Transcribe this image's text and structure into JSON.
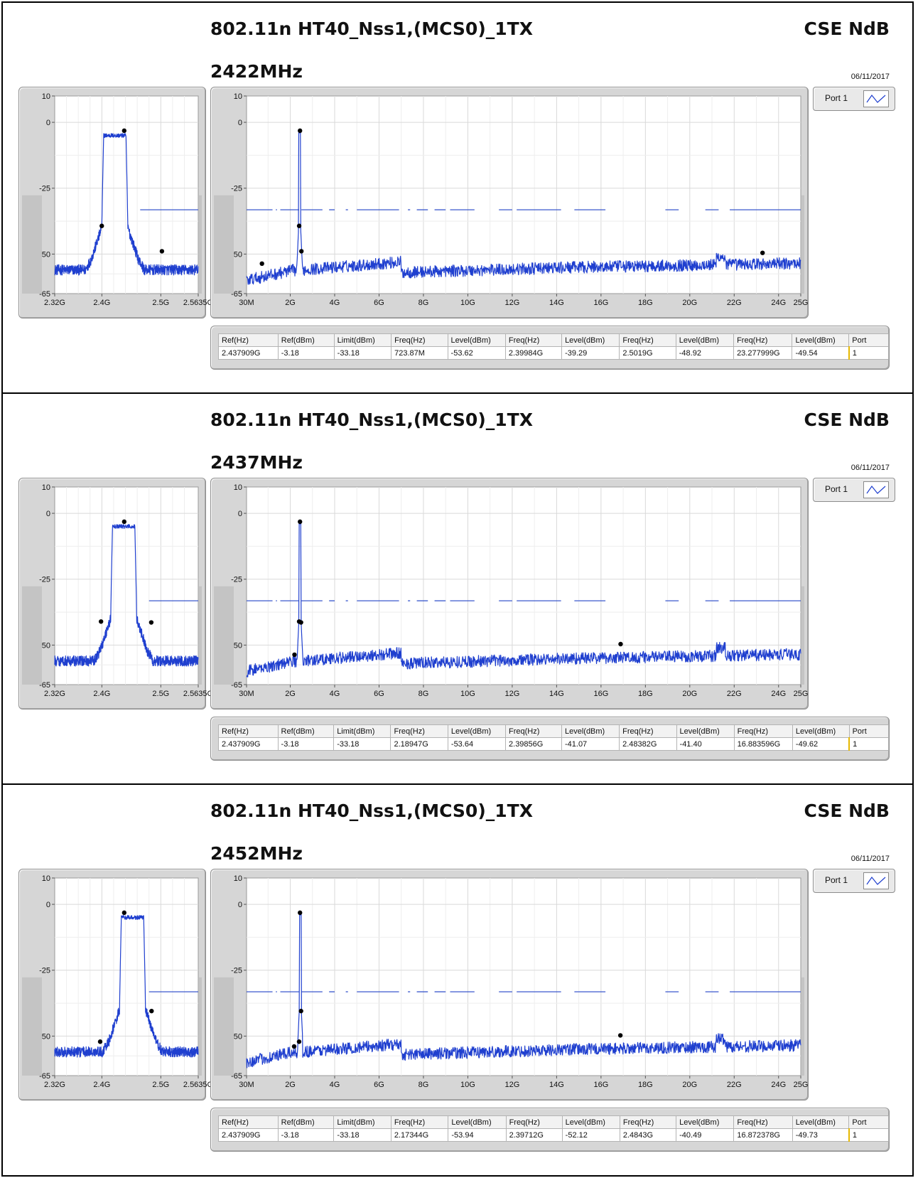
{
  "sections": [
    {
      "title": "802.11n HT40_Nss1,(MCS0)_1TX",
      "freq_label": "2422MHz",
      "brand": "CSE NdB",
      "date": "06/11/2017",
      "port_label": "Port 1",
      "markers_table": {
        "headers": [
          "Ref(Hz)",
          "Ref(dBm)",
          "Limit(dBm)",
          "Freq(Hz)",
          "Level(dBm)",
          "Freq(Hz)",
          "Level(dBm)",
          "Freq(Hz)",
          "Level(dBm)",
          "Freq(Hz)",
          "Level(dBm)",
          "Port"
        ],
        "row": [
          "2.437909G",
          "-3.18",
          "-33.18",
          "723.87M",
          "-53.62",
          "2.39984G",
          "-39.29",
          "2.5019G",
          "-48.92",
          "23.277999G",
          "-49.54",
          "1"
        ]
      }
    },
    {
      "title": "802.11n HT40_Nss1,(MCS0)_1TX",
      "freq_label": "2437MHz",
      "brand": "CSE NdB",
      "date": "06/11/2017",
      "port_label": "Port 1",
      "markers_table": {
        "headers": [
          "Ref(Hz)",
          "Ref(dBm)",
          "Limit(dBm)",
          "Freq(Hz)",
          "Level(dBm)",
          "Freq(Hz)",
          "Level(dBm)",
          "Freq(Hz)",
          "Level(dBm)",
          "Freq(Hz)",
          "Level(dBm)",
          "Port"
        ],
        "row": [
          "2.437909G",
          "-3.18",
          "-33.18",
          "2.18947G",
          "-53.64",
          "2.39856G",
          "-41.07",
          "2.48382G",
          "-41.40",
          "16.883596G",
          "-49.62",
          "1"
        ]
      }
    },
    {
      "title": "802.11n HT40_Nss1,(MCS0)_1TX",
      "freq_label": "2452MHz",
      "brand": "CSE NdB",
      "date": "06/11/2017",
      "port_label": "Port 1",
      "markers_table": {
        "headers": [
          "Ref(Hz)",
          "Ref(dBm)",
          "Limit(dBm)",
          "Freq(Hz)",
          "Level(dBm)",
          "Freq(Hz)",
          "Level(dBm)",
          "Freq(Hz)",
          "Level(dBm)",
          "Freq(Hz)",
          "Level(dBm)",
          "Port"
        ],
        "row": [
          "2.437909G",
          "-3.18",
          "-33.18",
          "2.17344G",
          "-53.94",
          "2.39712G",
          "-52.12",
          "2.4843G",
          "-40.49",
          "16.872378G",
          "-49.73",
          "1"
        ]
      }
    }
  ],
  "chart_data": [
    {
      "type": "line",
      "section": 1,
      "chart": "zoom",
      "xlim_hz": [
        2320000000,
        2563500000
      ],
      "ylim": [
        -65,
        10
      ],
      "x_ticks": [
        2320000000,
        2400000000,
        2500000000,
        2563500000
      ],
      "x_tick_labels": [
        "2.32G",
        "2.4G",
        "2.5G",
        "2.5635G"
      ],
      "y_ticks": [
        10,
        0,
        -25,
        -50,
        -65
      ],
      "y_tick_labels": [
        "10",
        "0",
        "-25",
        "-50",
        "-65"
      ],
      "carrier_hz": 2422000000,
      "limit_dbm": -33.18,
      "limit_segments_hz": [
        [
          2465000000,
          2563500000
        ]
      ],
      "markers": [
        {
          "x_hz": 2437909000,
          "y": -3.18
        },
        {
          "x_hz": 2399840000,
          "y": -39.29
        },
        {
          "x_hz": 2501900000,
          "y": -48.92
        }
      ],
      "grid": true,
      "series_color": "#1f3fcf"
    },
    {
      "type": "line",
      "section": 1,
      "chart": "wide",
      "xlim_hz": [
        30000000,
        25000000000
      ],
      "ylim": [
        -65,
        10
      ],
      "x_ticks": [
        30000000,
        2000000000,
        4000000000,
        6000000000,
        8000000000,
        10000000000,
        12000000000,
        14000000000,
        16000000000,
        18000000000,
        20000000000,
        22000000000,
        24000000000,
        25000000000
      ],
      "x_tick_labels": [
        "30M",
        "2G",
        "4G",
        "6G",
        "8G",
        "10G",
        "12G",
        "14G",
        "16G",
        "18G",
        "20G",
        "22G",
        "24G",
        "25G"
      ],
      "y_ticks": [
        10,
        0,
        -25,
        -50,
        -65
      ],
      "y_tick_labels": [
        "10",
        "0",
        "-25",
        "-50",
        "-65"
      ],
      "carrier_hz": 2422000000,
      "limit_dbm": -33.18,
      "limit_segments_hz": [
        [
          30000000,
          1200000000
        ],
        [
          1350000000,
          1400000000
        ],
        [
          1550000000,
          2400000000
        ],
        [
          2500000000,
          3450000000
        ],
        [
          3750000000,
          4000000000
        ],
        [
          4500000000,
          4600000000
        ],
        [
          5000000000,
          6900000000
        ],
        [
          7300000000,
          7400000000
        ],
        [
          7700000000,
          8200000000
        ],
        [
          8500000000,
          9000000000
        ],
        [
          9200000000,
          10300000000
        ],
        [
          11400000000,
          12000000000
        ],
        [
          12200000000,
          14200000000
        ],
        [
          14800000000,
          16200000000
        ],
        [
          18900000000,
          19500000000
        ],
        [
          20700000000,
          21300000000
        ],
        [
          21800000000,
          25000000000
        ]
      ],
      "markers": [
        {
          "x_hz": 2437909000,
          "y": -3.18
        },
        {
          "x_hz": 723870000,
          "y": -53.62
        },
        {
          "x_hz": 2399840000,
          "y": -39.29
        },
        {
          "x_hz": 2501900000,
          "y": -48.92
        },
        {
          "x_hz": 23277999000,
          "y": -49.54
        }
      ],
      "grid": true,
      "series_color": "#1f3fcf"
    },
    {
      "type": "line",
      "section": 2,
      "chart": "zoom",
      "xlim_hz": [
        2320000000,
        2563500000
      ],
      "ylim": [
        -65,
        10
      ],
      "x_ticks": [
        2320000000,
        2400000000,
        2500000000,
        2563500000
      ],
      "x_tick_labels": [
        "2.32G",
        "2.4G",
        "2.5G",
        "2.5635G"
      ],
      "y_ticks": [
        10,
        0,
        -25,
        -50,
        -65
      ],
      "y_tick_labels": [
        "10",
        "0",
        "-25",
        "-50",
        "-65"
      ],
      "carrier_hz": 2437000000,
      "limit_dbm": -33.18,
      "limit_segments_hz": [
        [
          2480000000,
          2563500000
        ]
      ],
      "markers": [
        {
          "x_hz": 2437909000,
          "y": -3.18
        },
        {
          "x_hz": 2398560000,
          "y": -41.07
        },
        {
          "x_hz": 2483820000,
          "y": -41.4
        }
      ],
      "grid": true,
      "series_color": "#1f3fcf"
    },
    {
      "type": "line",
      "section": 2,
      "chart": "wide",
      "xlim_hz": [
        30000000,
        25000000000
      ],
      "ylim": [
        -65,
        10
      ],
      "x_ticks": [
        30000000,
        2000000000,
        4000000000,
        6000000000,
        8000000000,
        10000000000,
        12000000000,
        14000000000,
        16000000000,
        18000000000,
        20000000000,
        22000000000,
        24000000000,
        25000000000
      ],
      "x_tick_labels": [
        "30M",
        "2G",
        "4G",
        "6G",
        "8G",
        "10G",
        "12G",
        "14G",
        "16G",
        "18G",
        "20G",
        "22G",
        "24G",
        "25G"
      ],
      "y_ticks": [
        10,
        0,
        -25,
        -50,
        -65
      ],
      "y_tick_labels": [
        "10",
        "0",
        "-25",
        "-50",
        "-65"
      ],
      "carrier_hz": 2437000000,
      "limit_dbm": -33.18,
      "limit_segments_hz": [
        [
          30000000,
          1200000000
        ],
        [
          1350000000,
          1400000000
        ],
        [
          1550000000,
          2400000000
        ],
        [
          2500000000,
          3450000000
        ],
        [
          3750000000,
          4000000000
        ],
        [
          4500000000,
          4600000000
        ],
        [
          5000000000,
          6900000000
        ],
        [
          7300000000,
          7400000000
        ],
        [
          7700000000,
          8200000000
        ],
        [
          8500000000,
          9000000000
        ],
        [
          9200000000,
          10300000000
        ],
        [
          11400000000,
          12000000000
        ],
        [
          12200000000,
          14200000000
        ],
        [
          14800000000,
          16200000000
        ],
        [
          18900000000,
          19500000000
        ],
        [
          20700000000,
          21300000000
        ],
        [
          21800000000,
          25000000000
        ]
      ],
      "markers": [
        {
          "x_hz": 2437909000,
          "y": -3.18
        },
        {
          "x_hz": 2189470000,
          "y": -53.64
        },
        {
          "x_hz": 2398560000,
          "y": -41.07
        },
        {
          "x_hz": 2483820000,
          "y": -41.4
        },
        {
          "x_hz": 16883596000,
          "y": -49.62
        }
      ],
      "grid": true,
      "series_color": "#1f3fcf"
    },
    {
      "type": "line",
      "section": 3,
      "chart": "zoom",
      "xlim_hz": [
        2320000000,
        2563500000
      ],
      "ylim": [
        -65,
        10
      ],
      "x_ticks": [
        2320000000,
        2400000000,
        2500000000,
        2563500000
      ],
      "x_tick_labels": [
        "2.32G",
        "2.4G",
        "2.5G",
        "2.5635G"
      ],
      "y_ticks": [
        10,
        0,
        -25,
        -50,
        -65
      ],
      "y_tick_labels": [
        "10",
        "0",
        "-25",
        "-50",
        "-65"
      ],
      "carrier_hz": 2452000000,
      "limit_dbm": -33.18,
      "limit_segments_hz": [
        [
          2480000000,
          2563500000
        ]
      ],
      "markers": [
        {
          "x_hz": 2437909000,
          "y": -3.18
        },
        {
          "x_hz": 2397120000,
          "y": -52.12
        },
        {
          "x_hz": 2484300000,
          "y": -40.49
        }
      ],
      "grid": true,
      "series_color": "#1f3fcf"
    },
    {
      "type": "line",
      "section": 3,
      "chart": "wide",
      "xlim_hz": [
        30000000,
        25000000000
      ],
      "ylim": [
        -65,
        10
      ],
      "x_ticks": [
        30000000,
        2000000000,
        4000000000,
        6000000000,
        8000000000,
        10000000000,
        12000000000,
        14000000000,
        16000000000,
        18000000000,
        20000000000,
        22000000000,
        24000000000,
        25000000000
      ],
      "x_tick_labels": [
        "30M",
        "2G",
        "4G",
        "6G",
        "8G",
        "10G",
        "12G",
        "14G",
        "16G",
        "18G",
        "20G",
        "22G",
        "24G",
        "25G"
      ],
      "y_ticks": [
        10,
        0,
        -25,
        -50,
        -65
      ],
      "y_tick_labels": [
        "10",
        "0",
        "-25",
        "-50",
        "-65"
      ],
      "carrier_hz": 2452000000,
      "limit_dbm": -33.18,
      "limit_segments_hz": [
        [
          30000000,
          1200000000
        ],
        [
          1350000000,
          1400000000
        ],
        [
          1550000000,
          2400000000
        ],
        [
          2500000000,
          3450000000
        ],
        [
          3750000000,
          4000000000
        ],
        [
          4500000000,
          4600000000
        ],
        [
          5000000000,
          6900000000
        ],
        [
          7300000000,
          7400000000
        ],
        [
          7700000000,
          8200000000
        ],
        [
          8500000000,
          9000000000
        ],
        [
          9200000000,
          10300000000
        ],
        [
          11400000000,
          12000000000
        ],
        [
          12200000000,
          14200000000
        ],
        [
          14800000000,
          16200000000
        ],
        [
          18900000000,
          19500000000
        ],
        [
          20700000000,
          21300000000
        ],
        [
          21800000000,
          25000000000
        ]
      ],
      "markers": [
        {
          "x_hz": 2437909000,
          "y": -3.18
        },
        {
          "x_hz": 2173440000,
          "y": -53.94
        },
        {
          "x_hz": 2397120000,
          "y": -52.12
        },
        {
          "x_hz": 2484300000,
          "y": -40.49
        },
        {
          "x_hz": 16872378000,
          "y": -49.73
        }
      ],
      "grid": true,
      "series_color": "#1f3fcf"
    }
  ]
}
